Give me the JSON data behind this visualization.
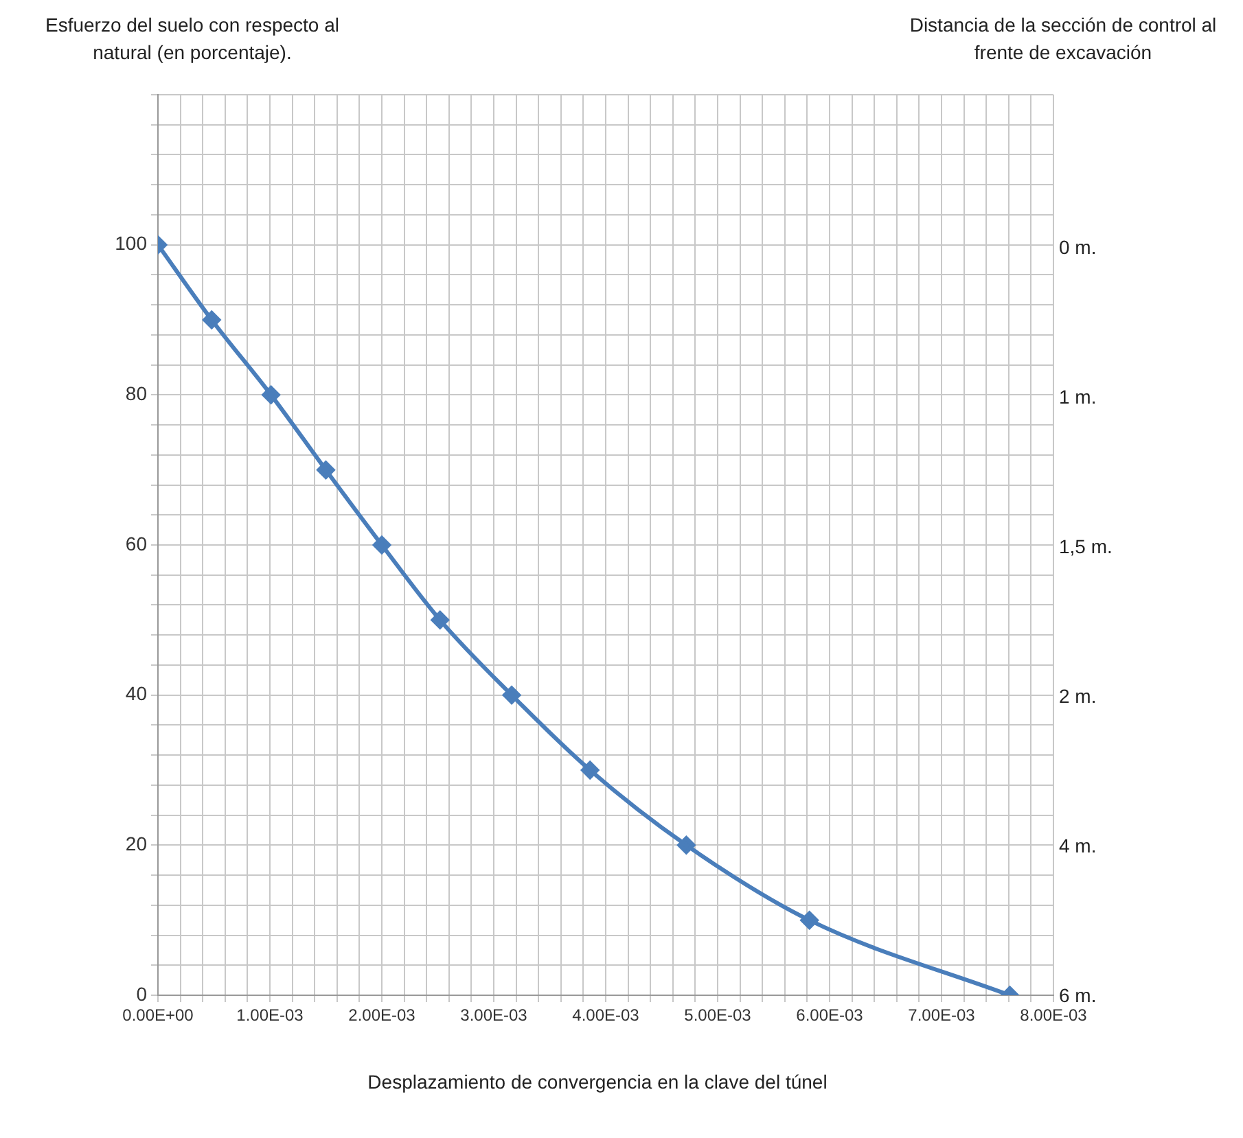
{
  "chart_data": {
    "type": "line",
    "ylabel": "Esfuerzo del suelo con respecto al natural (en porcentaje).",
    "y2label": "Distancia de la sección de control al frente de excavación",
    "xlabel": "Desplazamiento de convergencia en la clave del túnel",
    "x": [
      0,
      0.00048,
      0.00101,
      0.0015,
      0.002,
      0.00252,
      0.00316,
      0.00386,
      0.00472,
      0.00582,
      0.00761
    ],
    "series": [
      {
        "color": "#4a7ebb",
        "values": [
          100,
          90,
          80,
          70,
          60,
          50,
          40,
          30,
          20,
          10,
          0
        ]
      }
    ],
    "xlim": [
      0,
      0.008
    ],
    "xticks": [
      {
        "value": 0,
        "label": "0.00E+00"
      },
      {
        "value": 0.0002,
        "label": null
      },
      {
        "value": 0.0004,
        "label": null
      },
      {
        "value": 0.0006,
        "label": null
      },
      {
        "value": 0.0008,
        "label": null
      },
      {
        "value": 0.001,
        "label": "1.00E-03"
      },
      {
        "value": 0.0012,
        "label": null
      },
      {
        "value": 0.0014,
        "label": null
      },
      {
        "value": 0.0016,
        "label": null
      },
      {
        "value": 0.0018,
        "label": null
      },
      {
        "value": 0.002,
        "label": "2.00E-03"
      },
      {
        "value": 0.0022,
        "label": null
      },
      {
        "value": 0.0024,
        "label": null
      },
      {
        "value": 0.0026,
        "label": null
      },
      {
        "value": 0.0028,
        "label": null
      },
      {
        "value": 0.003,
        "label": "3.00E-03"
      },
      {
        "value": 0.0032,
        "label": null
      },
      {
        "value": 0.0034,
        "label": null
      },
      {
        "value": 0.0036,
        "label": null
      },
      {
        "value": 0.0038,
        "label": null
      },
      {
        "value": 0.004,
        "label": "4.00E-03"
      },
      {
        "value": 0.0042,
        "label": null
      },
      {
        "value": 0.0044,
        "label": null
      },
      {
        "value": 0.0046,
        "label": null
      },
      {
        "value": 0.0048,
        "label": null
      },
      {
        "value": 0.005,
        "label": "5.00E-03"
      },
      {
        "value": 0.0052,
        "label": null
      },
      {
        "value": 0.0054,
        "label": null
      },
      {
        "value": 0.0056,
        "label": null
      },
      {
        "value": 0.0058,
        "label": null
      },
      {
        "value": 0.006,
        "label": "6.00E-03"
      },
      {
        "value": 0.0062,
        "label": null
      },
      {
        "value": 0.0064,
        "label": null
      },
      {
        "value": 0.0066,
        "label": null
      },
      {
        "value": 0.0068,
        "label": null
      },
      {
        "value": 0.007,
        "label": "7.00E-03"
      },
      {
        "value": 0.0072,
        "label": null
      },
      {
        "value": 0.0074,
        "label": null
      },
      {
        "value": 0.0076,
        "label": null
      },
      {
        "value": 0.0078,
        "label": null
      },
      {
        "value": 0.008,
        "label": "8.00E-03"
      }
    ],
    "ylim": [
      0,
      120
    ],
    "yticks": [
      0,
      {
        "value": 4,
        "label": null
      },
      {
        "value": 8,
        "label": null
      },
      {
        "value": 12,
        "label": null
      },
      {
        "value": 16,
        "label": null
      },
      20,
      {
        "value": 24,
        "label": null
      },
      {
        "value": 28,
        "label": null
      },
      {
        "value": 32,
        "label": null
      },
      {
        "value": 36,
        "label": null
      },
      40,
      {
        "value": 44,
        "label": null
      },
      {
        "value": 48,
        "label": null
      },
      {
        "value": 52,
        "label": null
      },
      {
        "value": 56,
        "label": null
      },
      60,
      {
        "value": 64,
        "label": null
      },
      {
        "value": 68,
        "label": null
      },
      {
        "value": 72,
        "label": null
      },
      {
        "value": 76,
        "label": null
      },
      80,
      {
        "value": 84,
        "label": null
      },
      {
        "value": 88,
        "label": null
      },
      {
        "value": 92,
        "label": null
      },
      {
        "value": 96,
        "label": null
      },
      100,
      {
        "value": 104,
        "label": null
      },
      {
        "value": 108,
        "label": null
      },
      {
        "value": 112,
        "label": null
      },
      {
        "value": 116,
        "label": null
      },
      {
        "value": 120,
        "label": null
      }
    ],
    "annotations": [
      "0 m.",
      "1 m.",
      "1,5 m.",
      "2 m.",
      "4 m.",
      "6 m."
    ],
    "grid": true,
    "legend": false,
    "marker": "diamond",
    "line_style": "solid"
  }
}
